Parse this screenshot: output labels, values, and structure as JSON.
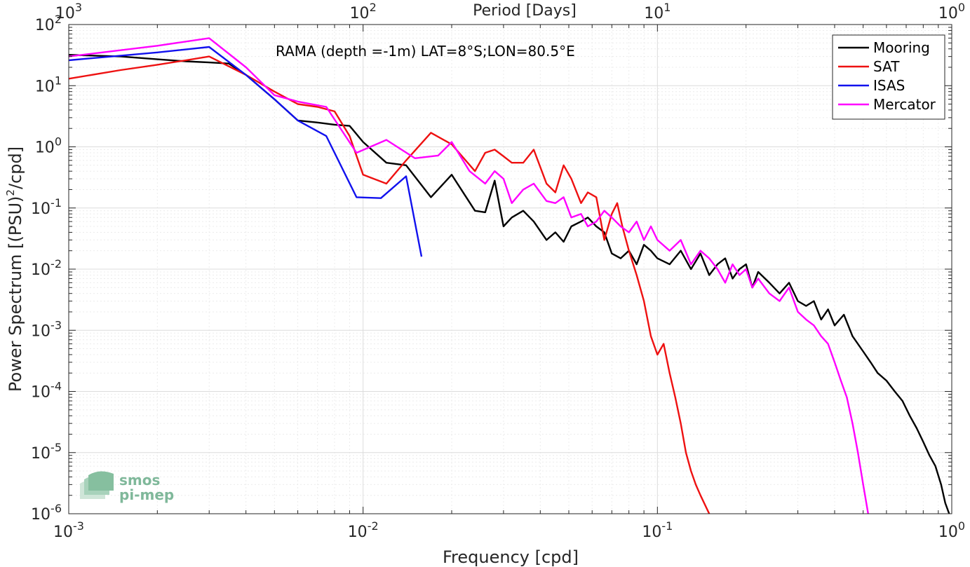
{
  "chart_data": {
    "type": "line",
    "title": "",
    "annotation": "RAMA (depth =-1m) LAT=8°S;LON=80.5°E",
    "xlabel": "Frequency [cpd]",
    "ylabel": "Power Spectrum [(PSU)",
    "ylabel_sup": "2",
    "ylabel_tail": "/cpd]",
    "top_xlabel": "Period [Days]",
    "xscale": "log",
    "yscale": "log",
    "xlim": [
      0.001,
      1
    ],
    "ylim": [
      1e-06,
      100
    ],
    "grid": true,
    "legend_position": "top-right",
    "x_ticks": [
      {
        "v": 0.001,
        "base": "10",
        "exp": "-3"
      },
      {
        "v": 0.01,
        "base": "10",
        "exp": "-2"
      },
      {
        "v": 0.1,
        "base": "10",
        "exp": "-1"
      },
      {
        "v": 1,
        "base": "10",
        "exp": "0"
      }
    ],
    "top_ticks": [
      {
        "v": 0.001,
        "base": "10",
        "exp": "3"
      },
      {
        "v": 0.01,
        "base": "10",
        "exp": "2"
      },
      {
        "v": 0.1,
        "base": "10",
        "exp": "1"
      },
      {
        "v": 1,
        "base": "10",
        "exp": "0"
      }
    ],
    "y_ticks": [
      {
        "v": 100,
        "base": "10",
        "exp": "2"
      },
      {
        "v": 10,
        "base": "10",
        "exp": "1"
      },
      {
        "v": 1,
        "base": "10",
        "exp": "0"
      },
      {
        "v": 0.1,
        "base": "10",
        "exp": "-1"
      },
      {
        "v": 0.01,
        "base": "10",
        "exp": "-2"
      },
      {
        "v": 0.001,
        "base": "10",
        "exp": "-3"
      },
      {
        "v": 0.0001,
        "base": "10",
        "exp": "-4"
      },
      {
        "v": 1e-05,
        "base": "10",
        "exp": "-5"
      },
      {
        "v": 1e-06,
        "base": "10",
        "exp": "-6"
      }
    ],
    "series": [
      {
        "name": "Mooring",
        "color": "#000000",
        "points": [
          [
            0.001,
            32
          ],
          [
            0.0015,
            30
          ],
          [
            0.002,
            27
          ],
          [
            0.0025,
            25
          ],
          [
            0.003,
            24
          ],
          [
            0.0035,
            23
          ],
          [
            0.004,
            15
          ],
          [
            0.005,
            6
          ],
          [
            0.006,
            2.7
          ],
          [
            0.007,
            2.5
          ],
          [
            0.008,
            2.3
          ],
          [
            0.009,
            2.2
          ],
          [
            0.01,
            1.2
          ],
          [
            0.012,
            0.55
          ],
          [
            0.014,
            0.5
          ],
          [
            0.017,
            0.15
          ],
          [
            0.02,
            0.35
          ],
          [
            0.024,
            0.09
          ],
          [
            0.026,
            0.085
          ],
          [
            0.028,
            0.28
          ],
          [
            0.03,
            0.05
          ],
          [
            0.032,
            0.07
          ],
          [
            0.035,
            0.09
          ],
          [
            0.038,
            0.06
          ],
          [
            0.042,
            0.03
          ],
          [
            0.045,
            0.04
          ],
          [
            0.048,
            0.028
          ],
          [
            0.051,
            0.05
          ],
          [
            0.055,
            0.06
          ],
          [
            0.058,
            0.07
          ],
          [
            0.062,
            0.05
          ],
          [
            0.066,
            0.04
          ],
          [
            0.07,
            0.018
          ],
          [
            0.075,
            0.015
          ],
          [
            0.08,
            0.02
          ],
          [
            0.085,
            0.012
          ],
          [
            0.09,
            0.025
          ],
          [
            0.095,
            0.02
          ],
          [
            0.1,
            0.015
          ],
          [
            0.11,
            0.012
          ],
          [
            0.12,
            0.02
          ],
          [
            0.13,
            0.01
          ],
          [
            0.14,
            0.018
          ],
          [
            0.15,
            0.008
          ],
          [
            0.16,
            0.012
          ],
          [
            0.17,
            0.015
          ],
          [
            0.18,
            0.007
          ],
          [
            0.19,
            0.01
          ],
          [
            0.2,
            0.012
          ],
          [
            0.21,
            0.005
          ],
          [
            0.22,
            0.009
          ],
          [
            0.24,
            0.006
          ],
          [
            0.26,
            0.004
          ],
          [
            0.28,
            0.006
          ],
          [
            0.3,
            0.003
          ],
          [
            0.32,
            0.0025
          ],
          [
            0.34,
            0.003
          ],
          [
            0.36,
            0.0015
          ],
          [
            0.38,
            0.0022
          ],
          [
            0.4,
            0.0012
          ],
          [
            0.43,
            0.0018
          ],
          [
            0.46,
            0.0008
          ],
          [
            0.5,
            0.00045
          ],
          [
            0.53,
            0.0003
          ],
          [
            0.56,
            0.0002
          ],
          [
            0.6,
            0.00015
          ],
          [
            0.64,
            0.0001
          ],
          [
            0.68,
            7e-05
          ],
          [
            0.72,
            4e-05
          ],
          [
            0.76,
            2.5e-05
          ],
          [
            0.8,
            1.5e-05
          ],
          [
            0.84,
            9e-06
          ],
          [
            0.88,
            6e-06
          ],
          [
            0.92,
            3e-06
          ],
          [
            0.95,
            1.5e-06
          ],
          [
            0.98,
            1e-06
          ]
        ]
      },
      {
        "name": "SAT",
        "color": "#ee1111",
        "points": [
          [
            0.001,
            13
          ],
          [
            0.0015,
            18
          ],
          [
            0.002,
            22
          ],
          [
            0.0025,
            26
          ],
          [
            0.003,
            30
          ],
          [
            0.004,
            15
          ],
          [
            0.005,
            8
          ],
          [
            0.006,
            5
          ],
          [
            0.007,
            4.5
          ],
          [
            0.008,
            3.8
          ],
          [
            0.009,
            1.5
          ],
          [
            0.01,
            0.35
          ],
          [
            0.012,
            0.25
          ],
          [
            0.014,
            0.6
          ],
          [
            0.017,
            1.7
          ],
          [
            0.02,
            1.1
          ],
          [
            0.024,
            0.4
          ],
          [
            0.026,
            0.8
          ],
          [
            0.028,
            0.9
          ],
          [
            0.03,
            0.7
          ],
          [
            0.032,
            0.55
          ],
          [
            0.035,
            0.55
          ],
          [
            0.038,
            0.9
          ],
          [
            0.042,
            0.25
          ],
          [
            0.045,
            0.18
          ],
          [
            0.048,
            0.5
          ],
          [
            0.051,
            0.3
          ],
          [
            0.055,
            0.12
          ],
          [
            0.058,
            0.18
          ],
          [
            0.062,
            0.15
          ],
          [
            0.066,
            0.03
          ],
          [
            0.07,
            0.08
          ],
          [
            0.073,
            0.12
          ],
          [
            0.076,
            0.05
          ],
          [
            0.08,
            0.02
          ],
          [
            0.085,
            0.008
          ],
          [
            0.09,
            0.003
          ],
          [
            0.095,
            0.0008
          ],
          [
            0.1,
            0.0004
          ],
          [
            0.105,
            0.0006
          ],
          [
            0.11,
            0.0002
          ],
          [
            0.115,
            8e-05
          ],
          [
            0.12,
            3e-05
          ],
          [
            0.125,
            1e-05
          ],
          [
            0.13,
            5e-06
          ],
          [
            0.135,
            3e-06
          ],
          [
            0.14,
            2e-06
          ],
          [
            0.15,
            1e-06
          ]
        ]
      },
      {
        "name": "ISAS",
        "color": "#1111ee",
        "points": [
          [
            0.001,
            26
          ],
          [
            0.002,
            35
          ],
          [
            0.003,
            43
          ],
          [
            0.004,
            15
          ],
          [
            0.005,
            6
          ],
          [
            0.006,
            2.7
          ],
          [
            0.0075,
            1.5
          ],
          [
            0.0095,
            0.15
          ],
          [
            0.0115,
            0.145
          ],
          [
            0.014,
            0.33
          ],
          [
            0.0158,
            0.016
          ]
        ]
      },
      {
        "name": "Mercator",
        "color": "#ff00ff",
        "points": [
          [
            0.001,
            30
          ],
          [
            0.002,
            45
          ],
          [
            0.003,
            60
          ],
          [
            0.004,
            20
          ],
          [
            0.005,
            7
          ],
          [
            0.006,
            5.5
          ],
          [
            0.0075,
            4.5
          ],
          [
            0.0095,
            0.8
          ],
          [
            0.012,
            1.3
          ],
          [
            0.015,
            0.65
          ],
          [
            0.018,
            0.72
          ],
          [
            0.02,
            1.2
          ],
          [
            0.023,
            0.4
          ],
          [
            0.026,
            0.25
          ],
          [
            0.028,
            0.4
          ],
          [
            0.03,
            0.3
          ],
          [
            0.032,
            0.12
          ],
          [
            0.035,
            0.2
          ],
          [
            0.038,
            0.25
          ],
          [
            0.042,
            0.13
          ],
          [
            0.045,
            0.12
          ],
          [
            0.048,
            0.15
          ],
          [
            0.051,
            0.07
          ],
          [
            0.055,
            0.08
          ],
          [
            0.058,
            0.05
          ],
          [
            0.062,
            0.06
          ],
          [
            0.066,
            0.09
          ],
          [
            0.07,
            0.07
          ],
          [
            0.075,
            0.05
          ],
          [
            0.08,
            0.04
          ],
          [
            0.085,
            0.06
          ],
          [
            0.09,
            0.03
          ],
          [
            0.095,
            0.05
          ],
          [
            0.1,
            0.03
          ],
          [
            0.11,
            0.02
          ],
          [
            0.12,
            0.03
          ],
          [
            0.13,
            0.012
          ],
          [
            0.14,
            0.02
          ],
          [
            0.15,
            0.015
          ],
          [
            0.16,
            0.01
          ],
          [
            0.17,
            0.006
          ],
          [
            0.18,
            0.012
          ],
          [
            0.19,
            0.008
          ],
          [
            0.2,
            0.01
          ],
          [
            0.21,
            0.005
          ],
          [
            0.22,
            0.007
          ],
          [
            0.24,
            0.004
          ],
          [
            0.26,
            0.003
          ],
          [
            0.28,
            0.005
          ],
          [
            0.3,
            0.002
          ],
          [
            0.32,
            0.0015
          ],
          [
            0.34,
            0.0012
          ],
          [
            0.36,
            0.0008
          ],
          [
            0.38,
            0.0006
          ],
          [
            0.4,
            0.0003
          ],
          [
            0.42,
            0.00015
          ],
          [
            0.44,
            8e-05
          ],
          [
            0.46,
            3e-05
          ],
          [
            0.48,
            1e-05
          ],
          [
            0.5,
            3e-06
          ],
          [
            0.52,
            1e-06
          ]
        ]
      }
    ]
  },
  "watermark": {
    "line1": "smos",
    "line2": "pi-mep"
  }
}
